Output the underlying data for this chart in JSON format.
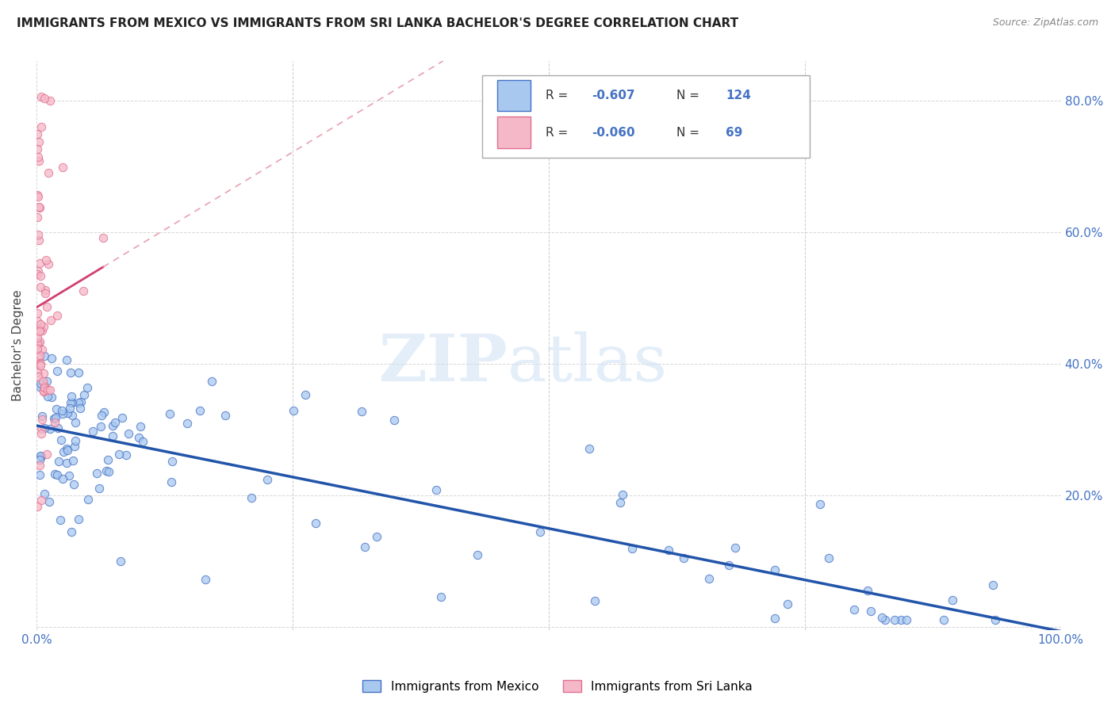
{
  "title": "IMMIGRANTS FROM MEXICO VS IMMIGRANTS FROM SRI LANKA BACHELOR'S DEGREE CORRELATION CHART",
  "source": "Source: ZipAtlas.com",
  "ylabel": "Bachelor's Degree",
  "watermark_zip": "ZIP",
  "watermark_atlas": "atlas",
  "xlim": [
    0.0,
    1.0
  ],
  "ylim": [
    -0.005,
    0.86
  ],
  "legend_r1": "-0.607",
  "legend_n1": "124",
  "legend_r2": "-0.060",
  "legend_n2": "69",
  "color_mexico_fill": "#a8c8f0",
  "color_mexico_edge": "#4472c4",
  "color_srilanka_fill": "#f5b8c8",
  "color_srilanka_edge": "#e07090",
  "color_mexico_line": "#2255aa",
  "color_srilanka_line_solid": "#d04070",
  "color_srilanka_line_dash": "#e8a0b0",
  "color_right_axis": "#4472c4",
  "grid_color": "#cccccc",
  "title_color": "#222222",
  "source_color": "#888888",
  "ylabel_color": "#444444"
}
